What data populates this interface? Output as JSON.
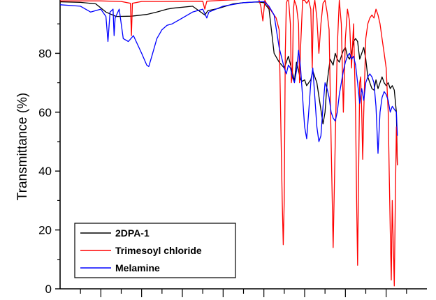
{
  "chart_data": {
    "type": "line",
    "title": "",
    "xlabel": "",
    "ylabel": "Transmittance (%)",
    "ylim": [
      0,
      100
    ],
    "xlim": [
      4000,
      400
    ],
    "x_reversed": true,
    "y_ticks": [
      0,
      20,
      40,
      60,
      80
    ],
    "grid": false,
    "legend_position": "bottom-left",
    "series": [
      {
        "name": "2DPA-1",
        "color": "#000000",
        "points": [
          [
            4000,
            97.5
          ],
          [
            3800,
            97.3
          ],
          [
            3650,
            96.8
          ],
          [
            3550,
            94.0
          ],
          [
            3450,
            92.5
          ],
          [
            3300,
            92.6
          ],
          [
            3150,
            93.2
          ],
          [
            3050,
            94.0
          ],
          [
            2950,
            95.0
          ],
          [
            2900,
            95.3
          ],
          [
            2700,
            96.0
          ],
          [
            2580,
            93.0
          ],
          [
            2550,
            94.5
          ],
          [
            2450,
            95.2
          ],
          [
            2300,
            96.8
          ],
          [
            2200,
            97.2
          ],
          [
            2100,
            97.4
          ],
          [
            2050,
            97.4
          ],
          [
            2000,
            97.2
          ],
          [
            1950,
            95.0
          ],
          [
            1900,
            80.0
          ],
          [
            1850,
            77.0
          ],
          [
            1800,
            75.0
          ],
          [
            1760,
            79.0
          ],
          [
            1730,
            75.0
          ],
          [
            1700,
            70.5
          ],
          [
            1680,
            77.0
          ],
          [
            1660,
            74.0
          ],
          [
            1640,
            71.0
          ],
          [
            1620,
            70.5
          ],
          [
            1600,
            71.0
          ],
          [
            1580,
            69.0
          ],
          [
            1560,
            70.0
          ],
          [
            1540,
            71.0
          ],
          [
            1520,
            74.0
          ],
          [
            1500,
            72.0
          ],
          [
            1480,
            70.0
          ],
          [
            1450,
            63.0
          ],
          [
            1420,
            56.0
          ],
          [
            1400,
            60.0
          ],
          [
            1380,
            70.0
          ],
          [
            1350,
            78.0
          ],
          [
            1320,
            76.0
          ],
          [
            1300,
            80.0
          ],
          [
            1280,
            78.0
          ],
          [
            1260,
            77.0
          ],
          [
            1240,
            79.0
          ],
          [
            1220,
            81.0
          ],
          [
            1200,
            82.0
          ],
          [
            1180,
            79.0
          ],
          [
            1160,
            78.0
          ],
          [
            1140,
            80.0
          ],
          [
            1120,
            84.0
          ],
          [
            1100,
            85.0
          ],
          [
            1080,
            84.0
          ],
          [
            1060,
            78.0
          ],
          [
            1040,
            80.0
          ],
          [
            1020,
            82.0
          ],
          [
            1000,
            78.0
          ],
          [
            980,
            72.0
          ],
          [
            960,
            70.0
          ],
          [
            940,
            68.0
          ],
          [
            920,
            67.5
          ],
          [
            900,
            71.0
          ],
          [
            880,
            68.0
          ],
          [
            860,
            70.0
          ],
          [
            840,
            72.0
          ],
          [
            820,
            70.0
          ],
          [
            800,
            69.0
          ],
          [
            780,
            70.0
          ],
          [
            760,
            68.0
          ],
          [
            740,
            69.0
          ],
          [
            720,
            67.5
          ],
          [
            700,
            60.0
          ],
          [
            690,
            42.0
          ]
        ]
      },
      {
        "name": "Trimesoyl chloride",
        "color": "#ff0000",
        "points": [
          [
            4000,
            97.8
          ],
          [
            3800,
            97.8
          ],
          [
            3600,
            97.8
          ],
          [
            3400,
            97.6
          ],
          [
            3310,
            97.0
          ],
          [
            3300,
            86.0
          ],
          [
            3290,
            97.0
          ],
          [
            3200,
            97.6
          ],
          [
            3000,
            97.6
          ],
          [
            2600,
            97.7
          ],
          [
            2580,
            95.0
          ],
          [
            2560,
            97.7
          ],
          [
            2400,
            98.0
          ],
          [
            2200,
            98.3
          ],
          [
            2050,
            98.3
          ],
          [
            2030,
            96.0
          ],
          [
            2010,
            91.0
          ],
          [
            1990,
            98.0
          ],
          [
            1960,
            96.0
          ],
          [
            1920,
            94.0
          ],
          [
            1880,
            92.0
          ],
          [
            1850,
            88.0
          ],
          [
            1820,
            30.0
          ],
          [
            1810,
            15.0
          ],
          [
            1800,
            30.0
          ],
          [
            1790,
            80.0
          ],
          [
            1780,
            97.0
          ],
          [
            1760,
            99.0
          ],
          [
            1740,
            90.0
          ],
          [
            1730,
            70.0
          ],
          [
            1720,
            73.0
          ],
          [
            1710,
            95.0
          ],
          [
            1700,
            98.0
          ],
          [
            1680,
            96.0
          ],
          [
            1660,
            90.0
          ],
          [
            1650,
            70.0
          ],
          [
            1640,
            82.0
          ],
          [
            1620,
            98.0
          ],
          [
            1600,
            98.0
          ],
          [
            1580,
            97.0
          ],
          [
            1560,
            98.0
          ],
          [
            1540,
            95.0
          ],
          [
            1525,
            75.0
          ],
          [
            1515,
            95.0
          ],
          [
            1500,
            98.0
          ],
          [
            1480,
            92.0
          ],
          [
            1460,
            80.0
          ],
          [
            1440,
            90.0
          ],
          [
            1420,
            97.0
          ],
          [
            1400,
            98.0
          ],
          [
            1380,
            94.0
          ],
          [
            1360,
            88.0
          ],
          [
            1340,
            50.0
          ],
          [
            1320,
            14.0
          ],
          [
            1300,
            50.0
          ],
          [
            1280,
            82.0
          ],
          [
            1260,
            98.0
          ],
          [
            1240,
            90.0
          ],
          [
            1220,
            60.0
          ],
          [
            1200,
            85.0
          ],
          [
            1180,
            95.0
          ],
          [
            1160,
            91.0
          ],
          [
            1140,
            75.0
          ],
          [
            1120,
            90.0
          ],
          [
            1100,
            60.0
          ],
          [
            1090,
            30.0
          ],
          [
            1080,
            8.0
          ],
          [
            1070,
            40.0
          ],
          [
            1060,
            70.0
          ],
          [
            1050,
            72.0
          ],
          [
            1040,
            60.0
          ],
          [
            1030,
            44.0
          ],
          [
            1020,
            60.0
          ],
          [
            1000,
            85.0
          ],
          [
            980,
            90.0
          ],
          [
            960,
            92.0
          ],
          [
            940,
            93.0
          ],
          [
            920,
            92.0
          ],
          [
            900,
            95.0
          ],
          [
            880,
            93.0
          ],
          [
            860,
            90.0
          ],
          [
            840,
            85.0
          ],
          [
            820,
            80.0
          ],
          [
            800,
            75.0
          ],
          [
            780,
            60.0
          ],
          [
            770,
            40.0
          ],
          [
            760,
            20.0
          ],
          [
            750,
            3.0
          ],
          [
            740,
            30.0
          ],
          [
            730,
            15.0
          ],
          [
            720,
            1.0
          ],
          [
            710,
            30.0
          ],
          [
            700,
            55.0
          ],
          [
            690,
            42.0
          ]
        ]
      },
      {
        "name": "Melamine",
        "color": "#0000ff",
        "points": [
          [
            4000,
            96.5
          ],
          [
            3800,
            96.0
          ],
          [
            3700,
            94.0
          ],
          [
            3600,
            95.0
          ],
          [
            3550,
            92.5
          ],
          [
            3530,
            84.0
          ],
          [
            3510,
            94.0
          ],
          [
            3480,
            95.0
          ],
          [
            3470,
            86.0
          ],
          [
            3460,
            92.0
          ],
          [
            3420,
            95.0
          ],
          [
            3380,
            85.0
          ],
          [
            3330,
            84.0
          ],
          [
            3280,
            86.0
          ],
          [
            3200,
            80.0
          ],
          [
            3150,
            76.0
          ],
          [
            3130,
            75.5
          ],
          [
            3100,
            79.0
          ],
          [
            3050,
            85.0
          ],
          [
            3000,
            88.0
          ],
          [
            2950,
            89.5
          ],
          [
            2900,
            90.0
          ],
          [
            2800,
            92.0
          ],
          [
            2700,
            94.0
          ],
          [
            2600,
            95.0
          ],
          [
            2560,
            92.0
          ],
          [
            2540,
            94.0
          ],
          [
            2400,
            96.0
          ],
          [
            2200,
            97.2
          ],
          [
            2000,
            97.6
          ],
          [
            1950,
            96.0
          ],
          [
            1900,
            93.0
          ],
          [
            1850,
            82.0
          ],
          [
            1800,
            75.0
          ],
          [
            1780,
            73.0
          ],
          [
            1760,
            76.0
          ],
          [
            1740,
            75.0
          ],
          [
            1720,
            72.0
          ],
          [
            1700,
            70.0
          ],
          [
            1680,
            74.0
          ],
          [
            1660,
            81.0
          ],
          [
            1640,
            75.0
          ],
          [
            1620,
            65.0
          ],
          [
            1600,
            55.0
          ],
          [
            1580,
            51.0
          ],
          [
            1560,
            60.0
          ],
          [
            1540,
            70.0
          ],
          [
            1520,
            75.0
          ],
          [
            1500,
            65.0
          ],
          [
            1480,
            55.0
          ],
          [
            1460,
            50.0
          ],
          [
            1440,
            52.0
          ],
          [
            1420,
            62.0
          ],
          [
            1400,
            70.0
          ],
          [
            1380,
            68.0
          ],
          [
            1360,
            65.0
          ],
          [
            1340,
            60.0
          ],
          [
            1320,
            58.0
          ],
          [
            1300,
            57.0
          ],
          [
            1280,
            60.0
          ],
          [
            1260,
            66.0
          ],
          [
            1240,
            70.0
          ],
          [
            1220,
            74.0
          ],
          [
            1200,
            77.0
          ],
          [
            1180,
            79.0
          ],
          [
            1160,
            80.0
          ],
          [
            1140,
            78.0
          ],
          [
            1120,
            79.0
          ],
          [
            1100,
            76.0
          ],
          [
            1080,
            70.0
          ],
          [
            1060,
            63.0
          ],
          [
            1040,
            68.0
          ],
          [
            1020,
            64.0
          ],
          [
            1000,
            70.0
          ],
          [
            980,
            72.0
          ],
          [
            960,
            73.0
          ],
          [
            940,
            72.0
          ],
          [
            920,
            70.0
          ],
          [
            900,
            62.0
          ],
          [
            880,
            46.0
          ],
          [
            860,
            60.0
          ],
          [
            840,
            65.0
          ],
          [
            820,
            67.0
          ],
          [
            800,
            66.0
          ],
          [
            780,
            64.0
          ],
          [
            760,
            60.0
          ],
          [
            740,
            62.0
          ],
          [
            720,
            61.0
          ],
          [
            700,
            60.0
          ],
          [
            690,
            52.0
          ]
        ]
      }
    ]
  }
}
